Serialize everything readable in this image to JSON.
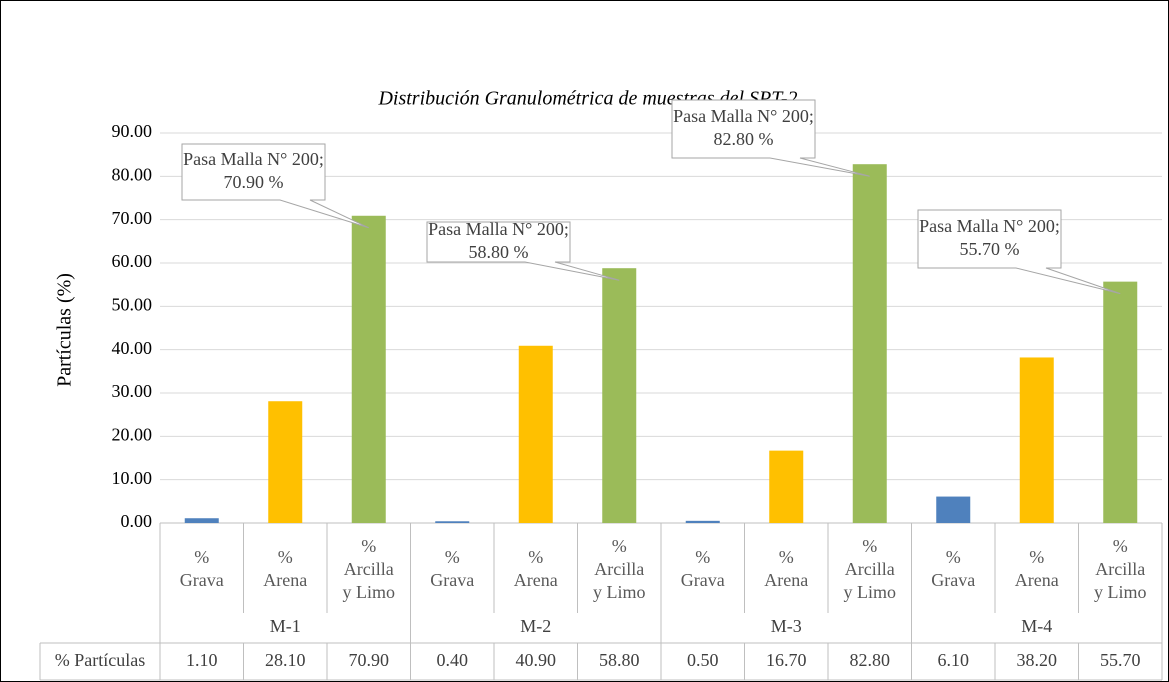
{
  "chart_data": {
    "type": "bar",
    "title": "Distribución Granulométrica de muestras del SPT-2",
    "ylabel": "Partículas (%)",
    "categories": [
      "% Grava",
      "% Arena",
      "% Arcilla y Limo",
      "% Grava",
      "% Arena",
      "% Arcilla y Limo",
      "% Grava",
      "% Arena",
      "% Arcilla y Limo",
      "% Grava",
      "% Arena",
      "% Arcilla y Limo"
    ],
    "groups": [
      "M-1",
      "M-2",
      "M-3",
      "M-4"
    ],
    "series": [
      {
        "name": "% Partículas",
        "colors": [
          "#4f81bd",
          "#ffc000",
          "#9bbb59",
          "#4f81bd",
          "#ffc000",
          "#9bbb59",
          "#4f81bd",
          "#ffc000",
          "#9bbb59",
          "#4f81bd",
          "#ffc000",
          "#9bbb59"
        ],
        "values": [
          1.1,
          28.1,
          70.9,
          0.4,
          40.9,
          58.8,
          0.5,
          16.7,
          82.8,
          6.1,
          38.2,
          55.7
        ],
        "value_labels": [
          "1.10",
          "28.10",
          "70.90",
          "0.40",
          "40.90",
          "58.80",
          "0.50",
          "16.70",
          "82.80",
          "6.10",
          "38.20",
          "55.70"
        ],
        "callout_prefix": "Pasa Malla N° 200;",
        "callout_labels": [
          null,
          null,
          "70.90 %",
          null,
          null,
          "58.80 %",
          null,
          null,
          "82.80 %",
          null,
          null,
          "55.70 %"
        ]
      }
    ],
    "ylim": [
      0,
      90
    ],
    "yticks": [
      {
        "value": 0,
        "label": "0.00"
      },
      {
        "value": 10,
        "label": "10.00"
      },
      {
        "value": 20,
        "label": "20.00"
      },
      {
        "value": 30,
        "label": "30.00"
      },
      {
        "value": 40,
        "label": "40.00"
      },
      {
        "value": 50,
        "label": "50.00"
      },
      {
        "value": 60,
        "label": "60.00"
      },
      {
        "value": 70,
        "label": "70.00"
      },
      {
        "value": 80,
        "label": "80.00"
      },
      {
        "value": 90,
        "label": "90.00"
      }
    ],
    "grid": true
  }
}
